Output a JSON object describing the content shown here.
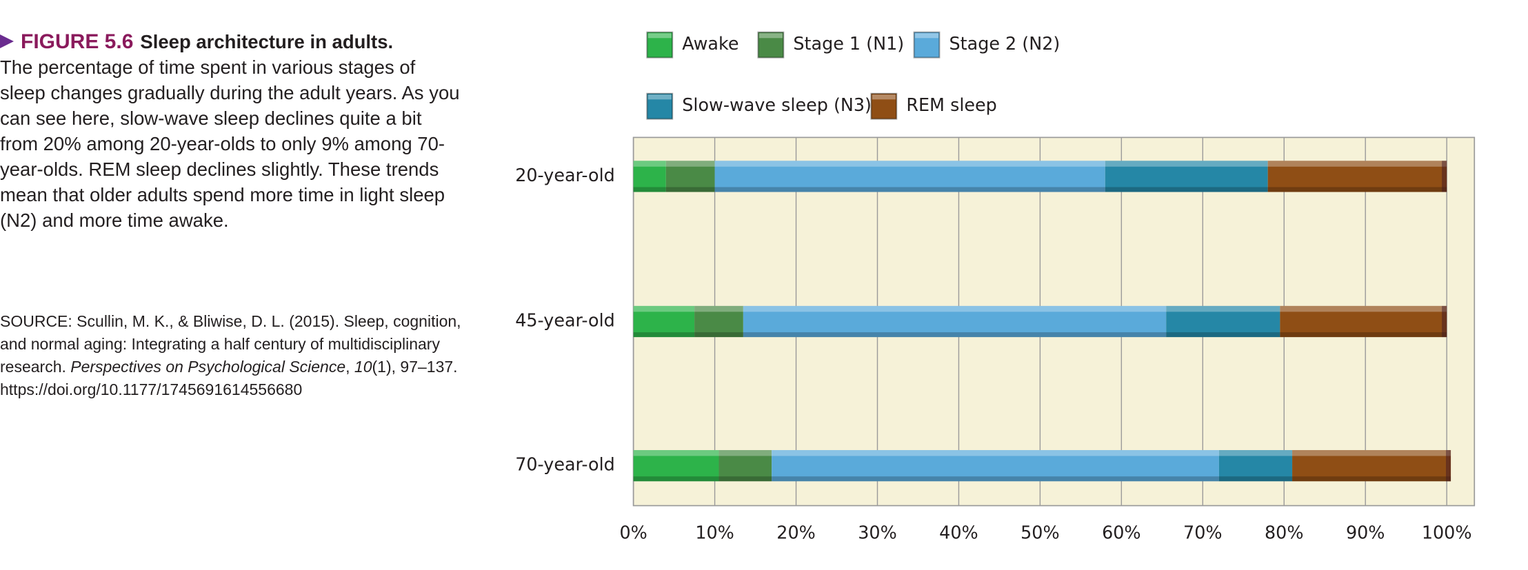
{
  "caption": {
    "label": "FIGURE 5.6",
    "title": "Sleep architecture in adults.",
    "body": "The percentage of time spent in various stages of sleep changes gradually during the adult years. As you can see here, slow-wave sleep declines quite a bit from 20% among 20-year-olds to only 9% among 70-year-olds. REM sleep declines slightly. These trends mean that older adults spend more time in light sleep (N2) and more time awake.",
    "source": [
      "SOURCE: Scullin, M. K., & Bliwise, D. L. (2015). Sleep, cognition, and normal aging: Integrating a half century of multidisciplinary research. ",
      "Perspectives on Psychological Science",
      ", ",
      "10",
      "(1), 97–137. https://doi.org/10.1177/1745691614556680"
    ]
  },
  "chart_data": {
    "type": "stacked-bar-horizontal",
    "categories": [
      "20-year-old",
      "45-year-old",
      "70-year-old"
    ],
    "series": [
      {
        "name": "Awake",
        "color": "#2db34a",
        "values": [
          4,
          7.5,
          10.5
        ]
      },
      {
        "name": "Stage 1 (N1)",
        "color": "#4a8a46",
        "values": [
          6,
          6,
          6.5
        ]
      },
      {
        "name": "Stage 2 (N2)",
        "color": "#5aaada",
        "values": [
          48,
          52,
          55
        ]
      },
      {
        "name": "Slow-wave sleep (N3)",
        "color": "#2587a6",
        "values": [
          20,
          14,
          9
        ]
      },
      {
        "name": "REM sleep",
        "color": "#8f4e15",
        "values": [
          22,
          20.5,
          19.5
        ]
      }
    ],
    "xlim": [
      0,
      103.4
    ],
    "xticks": [
      {
        "value": 0,
        "label": "0%"
      },
      {
        "value": 10,
        "label": "10%"
      },
      {
        "value": 20,
        "label": "20%"
      },
      {
        "value": 30,
        "label": "30%"
      },
      {
        "value": 40,
        "label": "40%"
      },
      {
        "value": 50,
        "label": "50%"
      },
      {
        "value": 60,
        "label": "60%"
      },
      {
        "value": 70,
        "label": "70%"
      },
      {
        "value": 80,
        "label": "80%"
      },
      {
        "value": 90,
        "label": "90%"
      },
      {
        "value": 100,
        "label": "100%"
      }
    ],
    "grid": true
  }
}
